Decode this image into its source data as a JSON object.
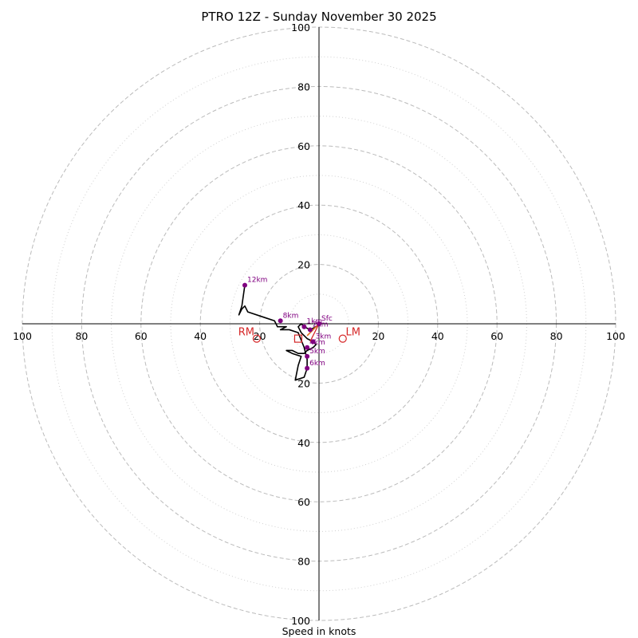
{
  "chart_data": {
    "type": "hodograph",
    "title": "PTRO 12Z - Sunday November 30 2025",
    "xlabel": "Speed in knots",
    "range": [
      -100,
      100
    ],
    "major_rings": [
      20,
      40,
      60,
      80,
      100
    ],
    "minor_rings": [
      10,
      30,
      50,
      70,
      90
    ],
    "tick_labels": [
      "100",
      "80",
      "60",
      "40",
      "20",
      "20",
      "40",
      "60",
      "80",
      "100"
    ],
    "y_tick_labels": [
      "100",
      "80",
      "60",
      "40",
      "20",
      "20",
      "40",
      "60",
      "80",
      "100"
    ],
    "trace": [
      [
        0,
        0
      ],
      [
        -1,
        -1
      ],
      [
        -3,
        -2
      ],
      [
        -5,
        -1
      ],
      [
        -6,
        0
      ],
      [
        -7,
        -1
      ],
      [
        -6,
        -3
      ],
      [
        -4,
        -5
      ],
      [
        -2,
        -6
      ],
      [
        -1,
        -7
      ],
      [
        -2,
        -8
      ],
      [
        -4,
        -9
      ],
      [
        -5,
        -10
      ],
      [
        -6,
        -10
      ],
      [
        -7,
        -10
      ],
      [
        -9,
        -9
      ],
      [
        -11,
        -9
      ],
      [
        -9,
        -10
      ],
      [
        -6,
        -11
      ],
      [
        -7,
        -14
      ],
      [
        -8,
        -19
      ],
      [
        -5,
        -18
      ],
      [
        -4,
        -15
      ],
      [
        -4,
        -12
      ],
      [
        -5,
        -8
      ],
      [
        -7,
        -3
      ],
      [
        -10,
        -2
      ],
      [
        -13,
        -2
      ],
      [
        -11,
        -1
      ],
      [
        -14,
        -1
      ],
      [
        -15,
        1
      ],
      [
        -18,
        2
      ],
      [
        -24,
        4
      ],
      [
        -25,
        6
      ],
      [
        -26,
        5
      ],
      [
        -27,
        3
      ],
      [
        -26,
        6
      ],
      [
        -25,
        13
      ]
    ],
    "points": [
      {
        "label": "Sfc",
        "u": 0,
        "v": 0
      },
      {
        "label": "2km",
        "u": -3,
        "v": -2
      },
      {
        "label": "1km",
        "u": -5,
        "v": -1
      },
      {
        "label": "3km",
        "u": -2,
        "v": -6
      },
      {
        "label": "4km",
        "u": -4,
        "v": -8
      },
      {
        "label": "5km",
        "u": -4,
        "v": -11
      },
      {
        "label": "6km",
        "u": -4,
        "v": -15
      },
      {
        "label": "8km",
        "u": -13,
        "v": 1
      },
      {
        "label": "12km",
        "u": -25,
        "v": 13
      }
    ],
    "storm_motion": {
      "rm": {
        "label": "RM",
        "u": -21,
        "v": -5
      },
      "lm": {
        "label": "LM",
        "u": 8,
        "v": -5
      },
      "mean": {
        "u": -7,
        "v": -5
      }
    },
    "shear_vector": [
      [
        0,
        0
      ],
      [
        -4,
        -4
      ]
    ],
    "colors": {
      "trace": "#000000",
      "points": "#800080",
      "storm": "#d62728",
      "grid": "#bbbbbb",
      "shear": "#e07020"
    }
  }
}
